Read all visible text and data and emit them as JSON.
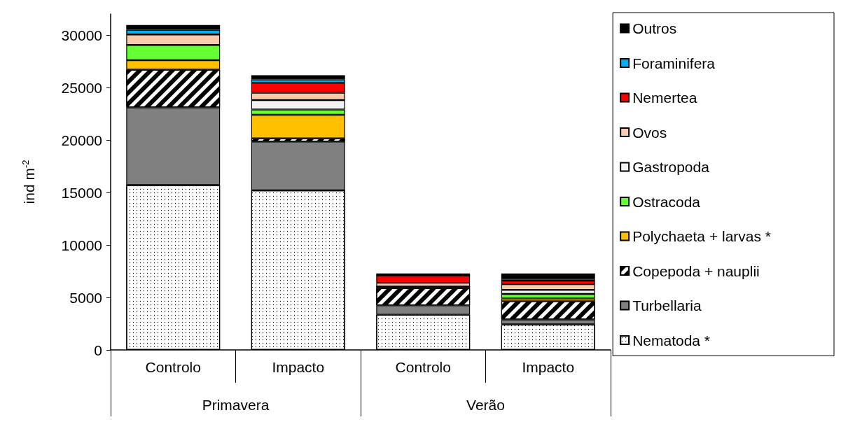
{
  "chart_data": {
    "type": "bar",
    "stacked": true,
    "ylabel": "ind m$^{-2}$",
    "categories": [
      "Controlo",
      "Impacto",
      "Controlo",
      "Impacto"
    ],
    "annotations": [
      "Primavera",
      "Verão"
    ],
    "series": [
      {
        "name": "Nematoda *",
        "color": "#ffffff",
        "values": [
          15700,
          15200,
          3350,
          2430
        ]
      },
      {
        "name": "Turbellaria",
        "color": "#808080",
        "values": [
          7400,
          4650,
          900,
          470
        ]
      },
      {
        "name": "Copepoda + nauplii",
        "color": "#ffffff",
        "values": [
          3600,
          300,
          1630,
          1740
        ]
      },
      {
        "name": "Polychaeta + larvas *",
        "color": "#ffc000",
        "values": [
          900,
          2250,
          150,
          260
        ]
      },
      {
        "name": "Ostracoda",
        "color": "#66ff33",
        "values": [
          1450,
          500,
          0,
          430
        ]
      },
      {
        "name": "Gastropoda",
        "color": "#f2f2f2",
        "values": [
          0,
          900,
          0,
          390
        ]
      },
      {
        "name": "Ovos",
        "color": "#f8cbad",
        "values": [
          1000,
          700,
          360,
          540
        ]
      },
      {
        "name": "Nemertea",
        "color": "#ff0000",
        "values": [
          0,
          950,
          710,
          340
        ]
      },
      {
        "name": "Foraminifera",
        "color": "#00b0f0",
        "values": [
          450,
          320,
          0,
          190
        ]
      },
      {
        "name": "Outros",
        "color": "#000000",
        "values": [
          450,
          400,
          180,
          500
        ]
      }
    ],
    "ylim": [
      0,
      32000
    ],
    "yticks": [
      0,
      5000,
      10000,
      15000,
      20000,
      25000,
      30000
    ],
    "grid": false,
    "legend": "right"
  }
}
